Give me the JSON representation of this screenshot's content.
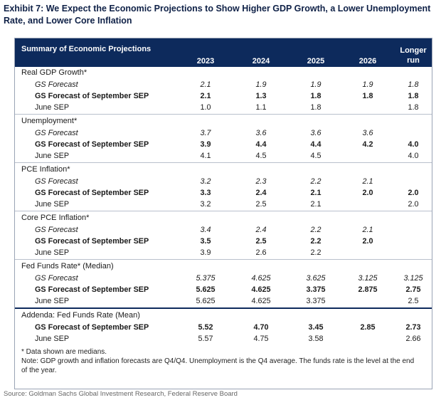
{
  "title": "Exhibit 7: We Expect the Economic Projections to Show Higher GDP Growth, a Lower Unemployment Rate, and Lower Core Inflation",
  "table": {
    "caption": "Summary of Economic Projections",
    "columns": [
      "2023",
      "2024",
      "2025",
      "2026"
    ],
    "longer_run_line1": "Longer",
    "longer_run_line2": "run",
    "sections": [
      {
        "title": "Real GDP Growth*",
        "rows": [
          {
            "type": "gs",
            "label": "GS Forecast",
            "values": [
              "2.1",
              "1.9",
              "1.9",
              "1.9",
              "1.8"
            ]
          },
          {
            "type": "sep",
            "label": "GS Forecast of September SEP",
            "values": [
              "2.1",
              "1.3",
              "1.8",
              "1.8",
              "1.8"
            ]
          },
          {
            "type": "june",
            "label": "June SEP",
            "values": [
              "1.0",
              "1.1",
              "1.8",
              "",
              "1.8"
            ]
          }
        ]
      },
      {
        "title": "Unemployment*",
        "rows": [
          {
            "type": "gs",
            "label": "GS Forecast",
            "values": [
              "3.7",
              "3.6",
              "3.6",
              "3.6",
              ""
            ]
          },
          {
            "type": "sep",
            "label": "GS Forecast of September SEP",
            "values": [
              "3.9",
              "4.4",
              "4.4",
              "4.2",
              "4.0"
            ]
          },
          {
            "type": "june",
            "label": "June SEP",
            "values": [
              "4.1",
              "4.5",
              "4.5",
              "",
              "4.0"
            ]
          }
        ]
      },
      {
        "title": "PCE Inflation*",
        "rows": [
          {
            "type": "gs",
            "label": "GS Forecast",
            "values": [
              "3.2",
              "2.3",
              "2.2",
              "2.1",
              ""
            ]
          },
          {
            "type": "sep",
            "label": "GS Forecast of September SEP",
            "values": [
              "3.3",
              "2.4",
              "2.1",
              "2.0",
              "2.0"
            ]
          },
          {
            "type": "june",
            "label": "June SEP",
            "values": [
              "3.2",
              "2.5",
              "2.1",
              "",
              "2.0"
            ]
          }
        ]
      },
      {
        "title": "Core PCE Inflation*",
        "rows": [
          {
            "type": "gs",
            "label": "GS Forecast",
            "values": [
              "3.4",
              "2.4",
              "2.2",
              "2.1",
              ""
            ]
          },
          {
            "type": "sep",
            "label": "GS Forecast of September SEP",
            "values": [
              "3.5",
              "2.5",
              "2.2",
              "2.0",
              ""
            ]
          },
          {
            "type": "june",
            "label": "June SEP",
            "values": [
              "3.9",
              "2.6",
              "2.2",
              "",
              ""
            ]
          }
        ]
      },
      {
        "title": "Fed Funds Rate* (Median)",
        "rows": [
          {
            "type": "gs",
            "label": "GS Forecast",
            "values": [
              "5.375",
              "4.625",
              "3.625",
              "3.125",
              "3.125"
            ]
          },
          {
            "type": "sep",
            "label": "GS Forecast of September SEP",
            "values": [
              "5.625",
              "4.625",
              "3.375",
              "2.875",
              "2.75"
            ]
          },
          {
            "type": "june",
            "label": "June SEP",
            "values": [
              "5.625",
              "4.625",
              "3.375",
              "",
              "2.5"
            ]
          }
        ]
      },
      {
        "title": "Addenda: Fed Funds Rate (Mean)",
        "rows": [
          {
            "type": "sep",
            "label": "GS Forecast of September SEP",
            "values": [
              "5.52",
              "4.70",
              "3.45",
              "2.85",
              "2.73"
            ]
          },
          {
            "type": "june",
            "label": "June SEP",
            "values": [
              "5.57",
              "4.75",
              "3.58",
              "",
              "2.66"
            ]
          }
        ]
      }
    ]
  },
  "notes": {
    "asterisk": "* Data shown are medians.",
    "note": "Note: GDP growth and inflation forecasts are Q4/Q4. Unemployment is the Q4 average. The funds rate is the level at the end of the year."
  },
  "source": "Source: Goldman Sachs Global Investment Research, Federal Reserve Board"
}
